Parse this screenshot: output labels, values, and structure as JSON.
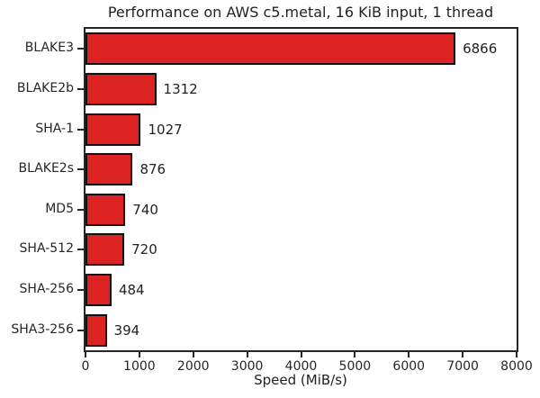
{
  "chart_data": {
    "type": "bar",
    "orientation": "horizontal",
    "title": "Performance on AWS c5.metal, 16 KiB input, 1 thread",
    "categories": [
      "BLAKE3",
      "BLAKE2b",
      "SHA-1",
      "BLAKE2s",
      "MD5",
      "SHA-512",
      "SHA-256",
      "SHA3-256"
    ],
    "values": [
      6866,
      1312,
      1027,
      876,
      740,
      720,
      484,
      394
    ],
    "value_labels": [
      "6866",
      "1312",
      "1027",
      "876",
      "740",
      "720",
      "484",
      "394"
    ],
    "xlabel": "Speed (MiB/s)",
    "ylabel": "",
    "xlim": [
      0,
      8000
    ],
    "xticks": [
      0,
      1000,
      2000,
      3000,
      4000,
      5000,
      6000,
      7000,
      8000
    ],
    "grid": false,
    "legend": "none",
    "bar_color": "#dd2222",
    "bar_edge_color": "#111111",
    "axis_color": "#262626",
    "background_color": "#ffffff"
  }
}
